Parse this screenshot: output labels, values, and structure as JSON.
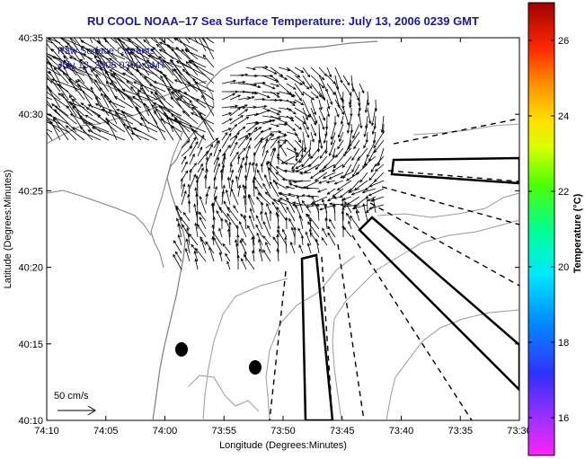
{
  "title": "RU COOL  NOAA–17  Sea Surface Temperature:  July 13, 2006 0239 GMT",
  "overlay": {
    "line1": "Raw Surface Currents",
    "line2": "July 13, 2006 0300 GMT"
  },
  "axes": {
    "xlabel": "Longitude (Degrees:Minutes)",
    "ylabel": "Latitude (Degrees:Minutes)",
    "x_ticks": [
      "74:10",
      "74:05",
      "74:00",
      "73:55",
      "73:50",
      "73:45",
      "73:40",
      "73:35",
      "73:30"
    ],
    "y_ticks": [
      "40:35",
      "40:30",
      "40:25",
      "40:20",
      "40:15",
      "40:10"
    ]
  },
  "scale_label": "50 cm/s",
  "colorbar": {
    "label": "Temperature (°C)",
    "ticks": [
      "26",
      "24",
      "22",
      "20",
      "18",
      "16"
    ],
    "range": [
      15,
      27
    ]
  },
  "colors": {
    "title": "#1a1a9a",
    "coast": "#7f7f7f",
    "vectors": "#000000"
  }
}
